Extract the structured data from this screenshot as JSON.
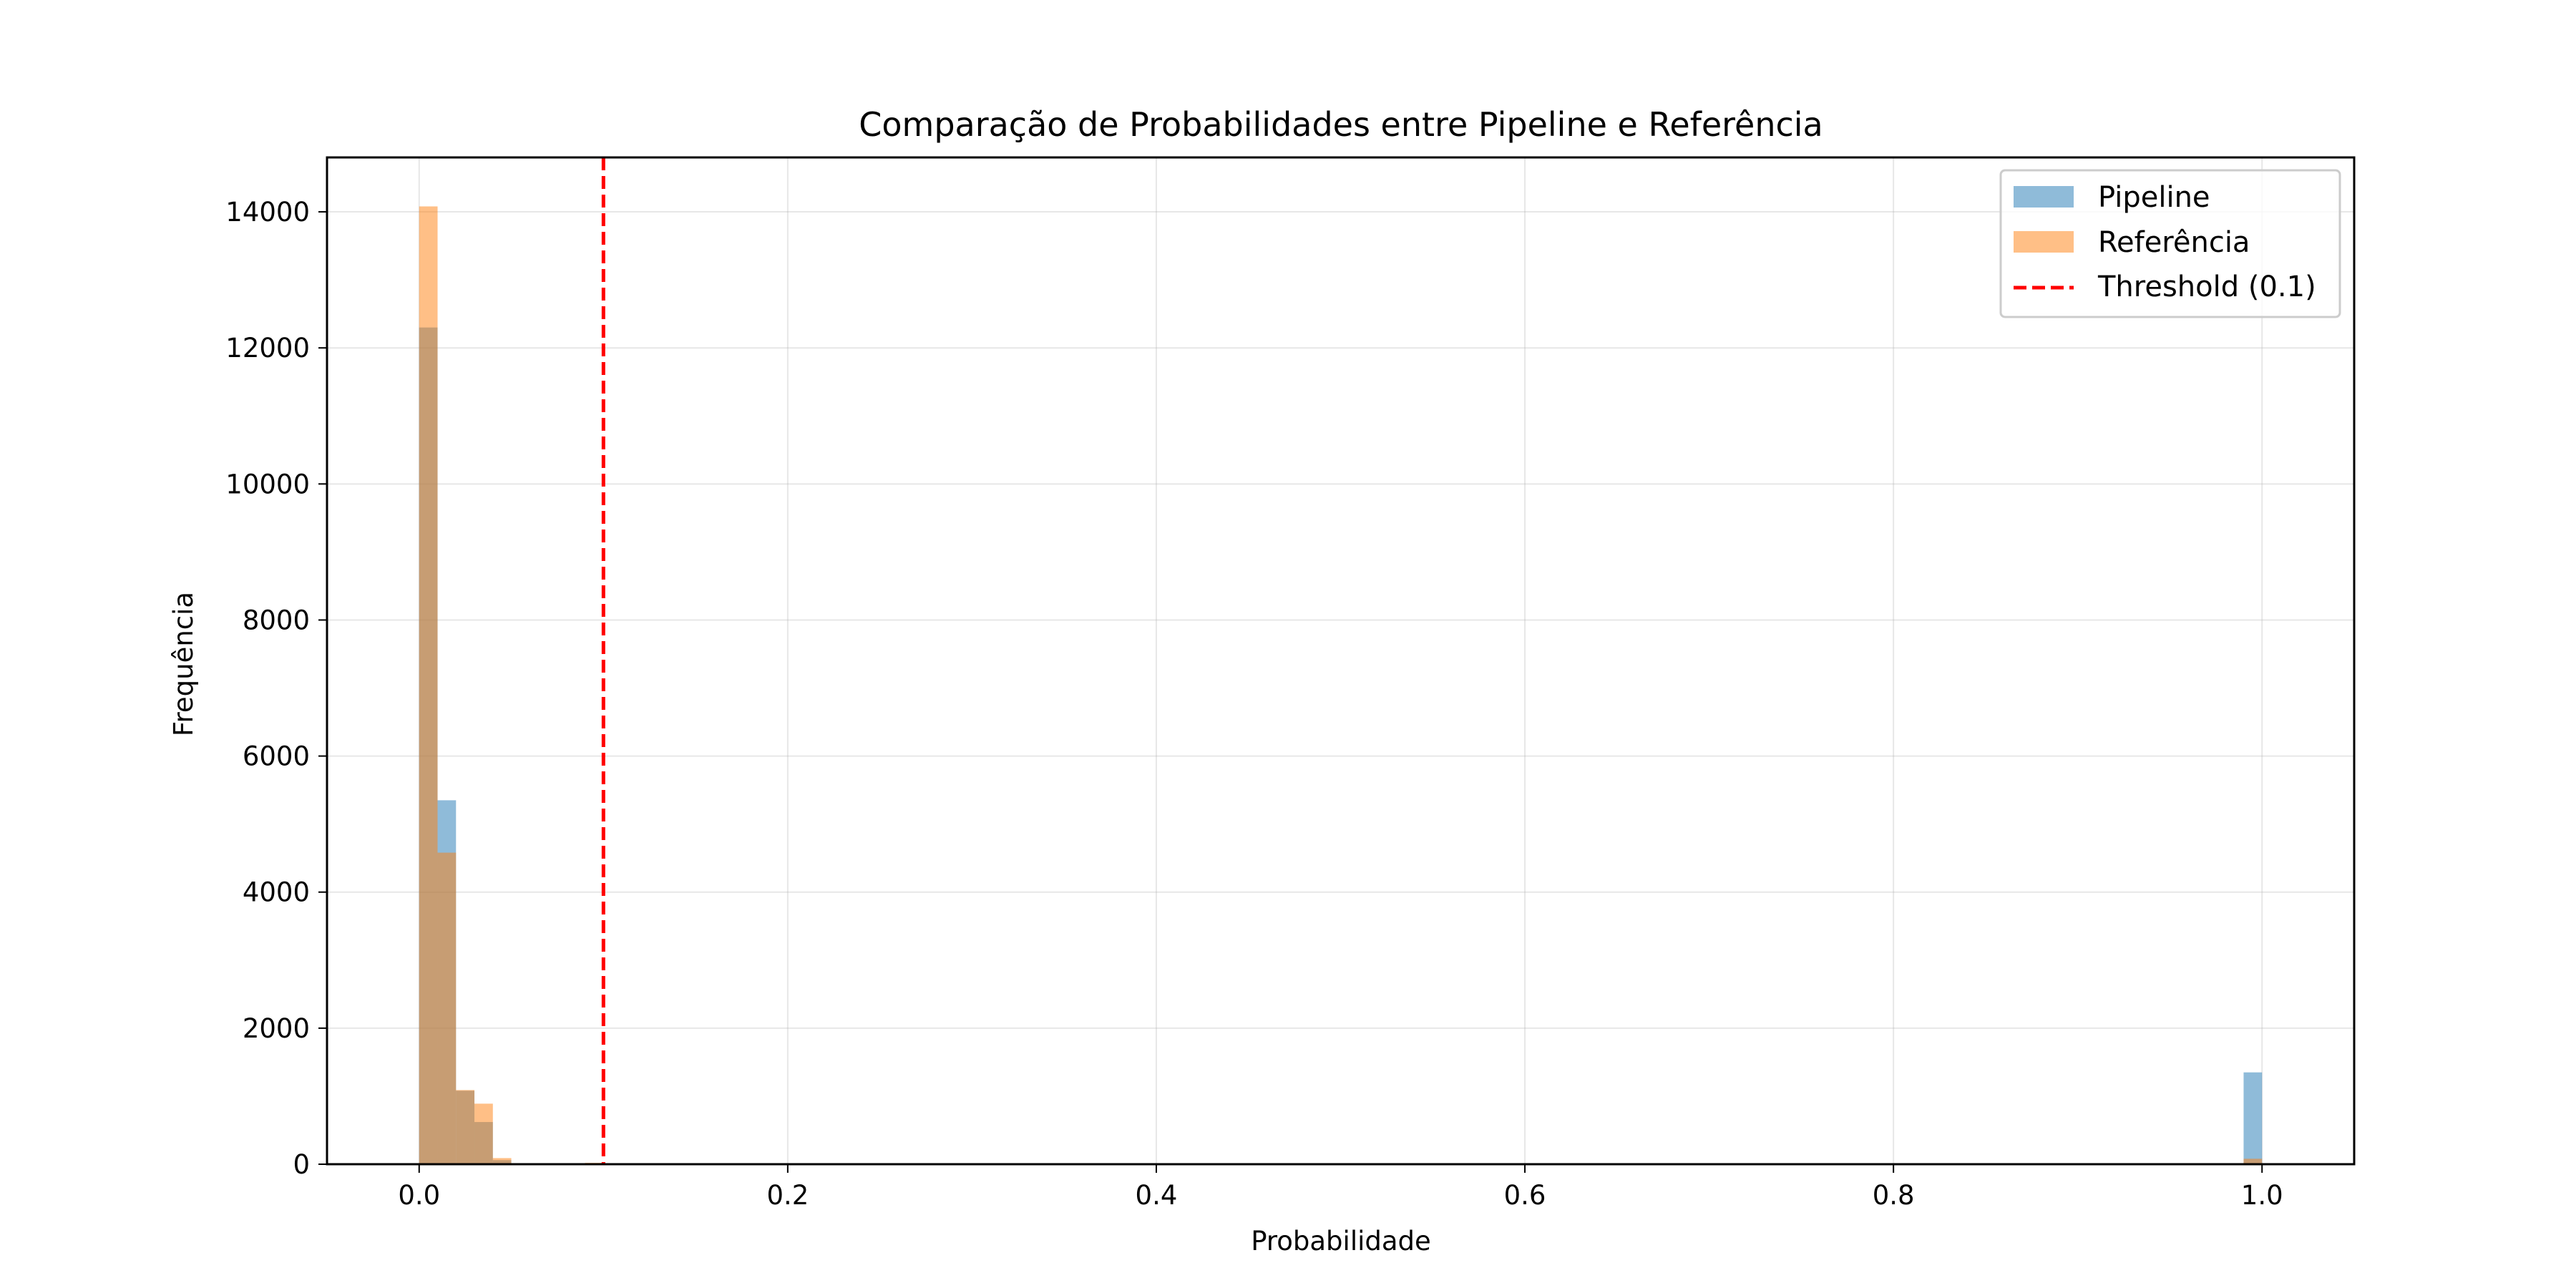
{
  "chart_data": {
    "type": "bar",
    "title": "Comparação de Probabilidades entre Pipeline e Referência",
    "xlabel": "Probabilidade",
    "ylabel": "Frequência",
    "xlim": [
      -0.05,
      1.05
    ],
    "ylim": [
      0,
      14800
    ],
    "xticks": [
      0.0,
      0.2,
      0.4,
      0.6,
      0.8,
      1.0
    ],
    "xtick_labels": [
      "0.0",
      "0.2",
      "0.4",
      "0.6",
      "0.8",
      "1.0"
    ],
    "yticks": [
      0,
      2000,
      4000,
      6000,
      8000,
      10000,
      12000,
      14000
    ],
    "ytick_labels": [
      "0",
      "2000",
      "4000",
      "6000",
      "8000",
      "10000",
      "12000",
      "14000"
    ],
    "grid": true,
    "legend_position": "top-right",
    "bin_width": 0.01,
    "series": [
      {
        "name": "Pipeline",
        "color": "#1f77b4",
        "alpha": 0.5,
        "bins": [
          {
            "x0": 0.0,
            "value": 12300
          },
          {
            "x0": 0.01,
            "value": 5350
          },
          {
            "x0": 0.02,
            "value": 1080
          },
          {
            "x0": 0.03,
            "value": 620
          },
          {
            "x0": 0.04,
            "value": 60
          },
          {
            "x0": 0.99,
            "value": 1350
          }
        ]
      },
      {
        "name": "Referência",
        "color": "#ff7f0e",
        "alpha": 0.5,
        "bins": [
          {
            "x0": 0.0,
            "value": 14080
          },
          {
            "x0": 0.01,
            "value": 4580
          },
          {
            "x0": 0.02,
            "value": 1090
          },
          {
            "x0": 0.03,
            "value": 890
          },
          {
            "x0": 0.04,
            "value": 90
          },
          {
            "x0": 0.09,
            "value": 20
          },
          {
            "x0": 0.99,
            "value": 80
          }
        ]
      }
    ],
    "reference_line": {
      "name": "Threshold (0.1)",
      "x": 0.1,
      "color": "#ff0000",
      "style": "dashed"
    }
  }
}
